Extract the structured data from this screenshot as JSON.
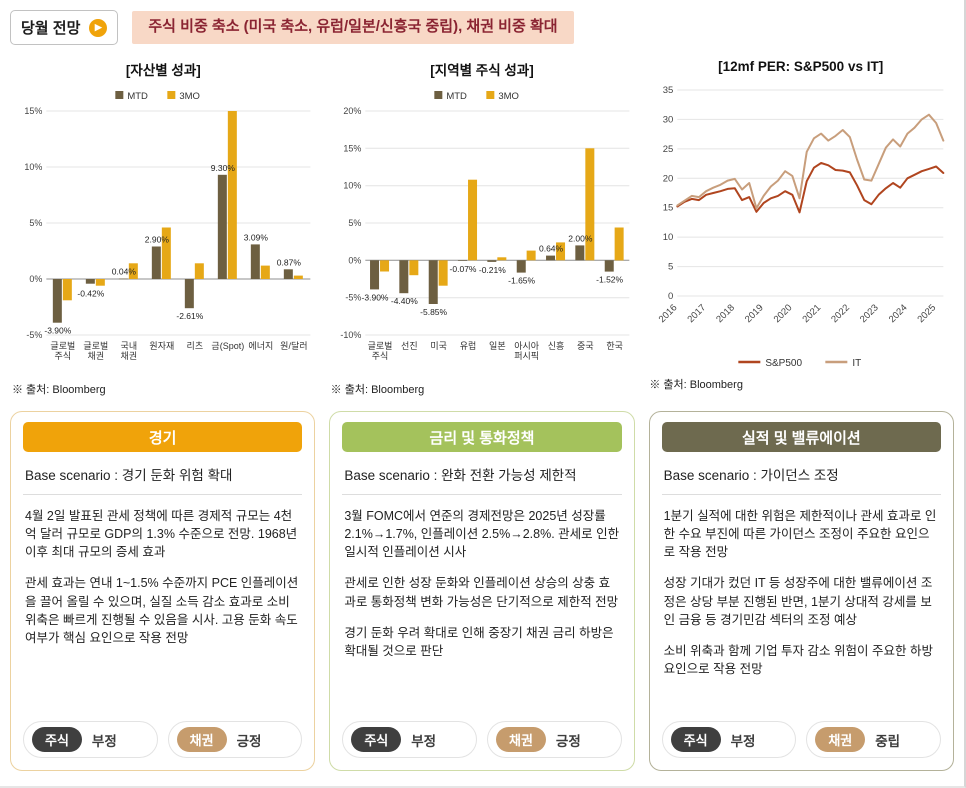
{
  "header": {
    "badge": "당월 전망",
    "badge_arrow": "▶",
    "highlight": "주식 비중 축소 (미국 축소, 유럽/일본/신흥국 중립), 채권 비중 확대"
  },
  "colors": {
    "mtd": "#6d5f41",
    "mo3": "#e6a817",
    "sp500": "#b0451f",
    "it": "#c89e7c",
    "stock_badge": "#3f3f3f",
    "bond_badge": "#c69c6d",
    "highlight_bg": "#f8d8c6",
    "highlight_text": "#8a2432",
    "accent_orange": "#f0a30a"
  },
  "charts": {
    "source": "※ 출처: Bloomberg"
  },
  "chart_data": [
    {
      "type": "bar",
      "title": "[자산별 성과]",
      "categories": [
        "글로벌\n주식",
        "글로벌\n채권",
        "국내\n채권",
        "원자재",
        "리츠",
        "금(Spot)",
        "에너지",
        "원/달러"
      ],
      "series": [
        {
          "name": "MTD",
          "values": [
            -3.9,
            -0.42,
            0.04,
            2.9,
            -2.61,
            9.3,
            3.09,
            0.87
          ]
        },
        {
          "name": "3MO",
          "values": [
            -1.9,
            -0.6,
            1.4,
            4.6,
            1.4,
            15.0,
            1.2,
            0.3
          ]
        }
      ],
      "value_labels": [
        "-3.90%",
        "-0.42%",
        "0.04%",
        "2.90%",
        "-2.61%",
        "9.30%",
        "3.09%",
        "0.87%"
      ],
      "ylim": [
        -5,
        15
      ],
      "yticks": [
        -5,
        0,
        5,
        10,
        15
      ],
      "ytick_suffix": "%",
      "colors": [
        "#6d5f41",
        "#e6a817"
      ],
      "grid": true,
      "legend_position": "top"
    },
    {
      "type": "bar",
      "title": "[지역별 주식 성과]",
      "categories": [
        "글로벌\n주식",
        "선진",
        "미국",
        "유럽",
        "일본",
        "아시아\n퍼시픽",
        "신흥",
        "중국",
        "한국"
      ],
      "series": [
        {
          "name": "MTD",
          "values": [
            -3.9,
            -4.4,
            -5.85,
            -0.07,
            -0.21,
            -1.65,
            0.64,
            2.0,
            -1.52
          ]
        },
        {
          "name": "3MO",
          "values": [
            -1.5,
            -2.0,
            -3.4,
            10.8,
            0.4,
            1.3,
            2.4,
            15.0,
            4.4
          ]
        }
      ],
      "value_labels": [
        "-3.90%",
        "-4.40%",
        "-5.85%",
        "-0.07%",
        "-0.21%",
        "-1.65%",
        "0.64%",
        "2.00%",
        "-1.52%"
      ],
      "ylim": [
        -10,
        20
      ],
      "yticks": [
        -10,
        -5,
        0,
        5,
        10,
        15,
        20
      ],
      "ytick_suffix": "%",
      "colors": [
        "#6d5f41",
        "#e6a817"
      ],
      "grid": true,
      "legend_position": "top"
    },
    {
      "type": "line",
      "title": "[12mf PER: S&P500 vs IT]",
      "x": [
        2016,
        2016.25,
        2016.5,
        2016.75,
        2017,
        2017.25,
        2017.5,
        2017.75,
        2018,
        2018.25,
        2018.5,
        2018.75,
        2019,
        2019.25,
        2019.5,
        2019.75,
        2020,
        2020.25,
        2020.5,
        2020.75,
        2021,
        2021.25,
        2021.5,
        2021.75,
        2022,
        2022.25,
        2022.5,
        2022.75,
        2023,
        2023.25,
        2023.5,
        2023.75,
        2024,
        2024.25,
        2024.5,
        2024.75,
        2025,
        2025.25
      ],
      "series": [
        {
          "name": "S&P500",
          "values": [
            15.2,
            16.0,
            16.5,
            16.3,
            17.2,
            17.5,
            17.8,
            18.2,
            18.3,
            16.3,
            16.8,
            14.3,
            15.8,
            16.6,
            17.0,
            17.8,
            17.2,
            14.2,
            19.5,
            21.8,
            22.6,
            22.2,
            21.4,
            21.3,
            21.0,
            18.8,
            16.3,
            15.6,
            17.2,
            18.3,
            19.2,
            18.4,
            20.0,
            20.6,
            21.2,
            21.6,
            22.0,
            20.9
          ]
        },
        {
          "name": "IT",
          "values": [
            15.4,
            16.2,
            17.0,
            16.8,
            17.8,
            18.4,
            18.9,
            19.6,
            19.9,
            18.1,
            19.2,
            14.9,
            17.0,
            18.6,
            19.6,
            21.2,
            20.4,
            16.6,
            24.5,
            26.8,
            27.6,
            26.4,
            27.2,
            28.2,
            27.0,
            23.2,
            19.8,
            19.6,
            22.4,
            25.2,
            26.6,
            25.4,
            27.6,
            28.6,
            30.0,
            30.8,
            29.4,
            26.4
          ]
        }
      ],
      "ylim": [
        0,
        35
      ],
      "yticks": [
        0,
        5,
        10,
        15,
        20,
        25,
        30,
        35
      ],
      "xticks": [
        2016,
        2017,
        2018,
        2019,
        2020,
        2021,
        2022,
        2023,
        2024,
        2025
      ],
      "colors": [
        "#b0451f",
        "#c89e7c"
      ],
      "grid": true,
      "legend_position": "bottom"
    }
  ],
  "panels": [
    {
      "header": "경기",
      "header_color": "#f0a30a",
      "border_color": "#ecd2a0",
      "base_scenario": "Base scenario : 경기 둔화 위험 확대",
      "paragraphs": [
        "4월 2일 발표된 관세 정책에 따른 경제적 규모는 4천억 달러 규모로 GDP의 1.3% 수준으로 전망. 1968년 이후 최대 규모의 증세 효과",
        "관세 효과는 연내 1~1.5% 수준까지 PCE 인플레이션을 끌어 올릴 수 있으며, 실질 소득 감소 효과로 소비 위축은 빠르게 진행될 수 있음을 시사. 고용 둔화 속도 여부가 핵심 요인으로 작용 전망"
      ],
      "stock_label": "주식",
      "stock_stance": "부정",
      "bond_label": "채권",
      "bond_stance": "긍정"
    },
    {
      "header": "금리 및 통화정책",
      "header_color": "#a4c25c",
      "border_color": "#cfdca8",
      "base_scenario": "Base scenario : 완화 전환 가능성 제한적",
      "paragraphs": [
        "3월 FOMC에서 연준의 경제전망은 2025년 성장률 2.1%→1.7%, 인플레이션 2.5%→2.8%. 관세로 인한 일시적 인플레이션 시사",
        "관세로 인한 성장 둔화와 인플레이션 상승의 상충 효과로 통화정책 변화 가능성은 단기적으로 제한적 전망",
        "경기 둔화 우려 확대로 인해 중장기 채권 금리 하방은 확대될 것으로 판단"
      ],
      "stock_label": "주식",
      "stock_stance": "부정",
      "bond_label": "채권",
      "bond_stance": "긍정"
    },
    {
      "header": "실적 및 밸류에이션",
      "header_color": "#6e6a4f",
      "border_color": "#b4b29a",
      "base_scenario": "Base scenario : 가이던스 조정",
      "paragraphs": [
        "1분기 실적에 대한 위험은 제한적이나 관세 효과로 인한 수요 부진에 따른 가이던스 조정이 주요한 요인으로 작용 전망",
        "성장 기대가 컸던 IT 등 성장주에 대한 밸류에이션 조정은 상당 부분 진행된 반면, 1분기 상대적 강세를 보인 금융 등 경기민감 섹터의 조정 예상",
        "소비 위축과 함께 기업 투자 감소 위험이 주요한 하방 요인으로 작용 전망"
      ],
      "stock_label": "주식",
      "stock_stance": "부정",
      "bond_label": "채권",
      "bond_stance": "중립"
    }
  ]
}
